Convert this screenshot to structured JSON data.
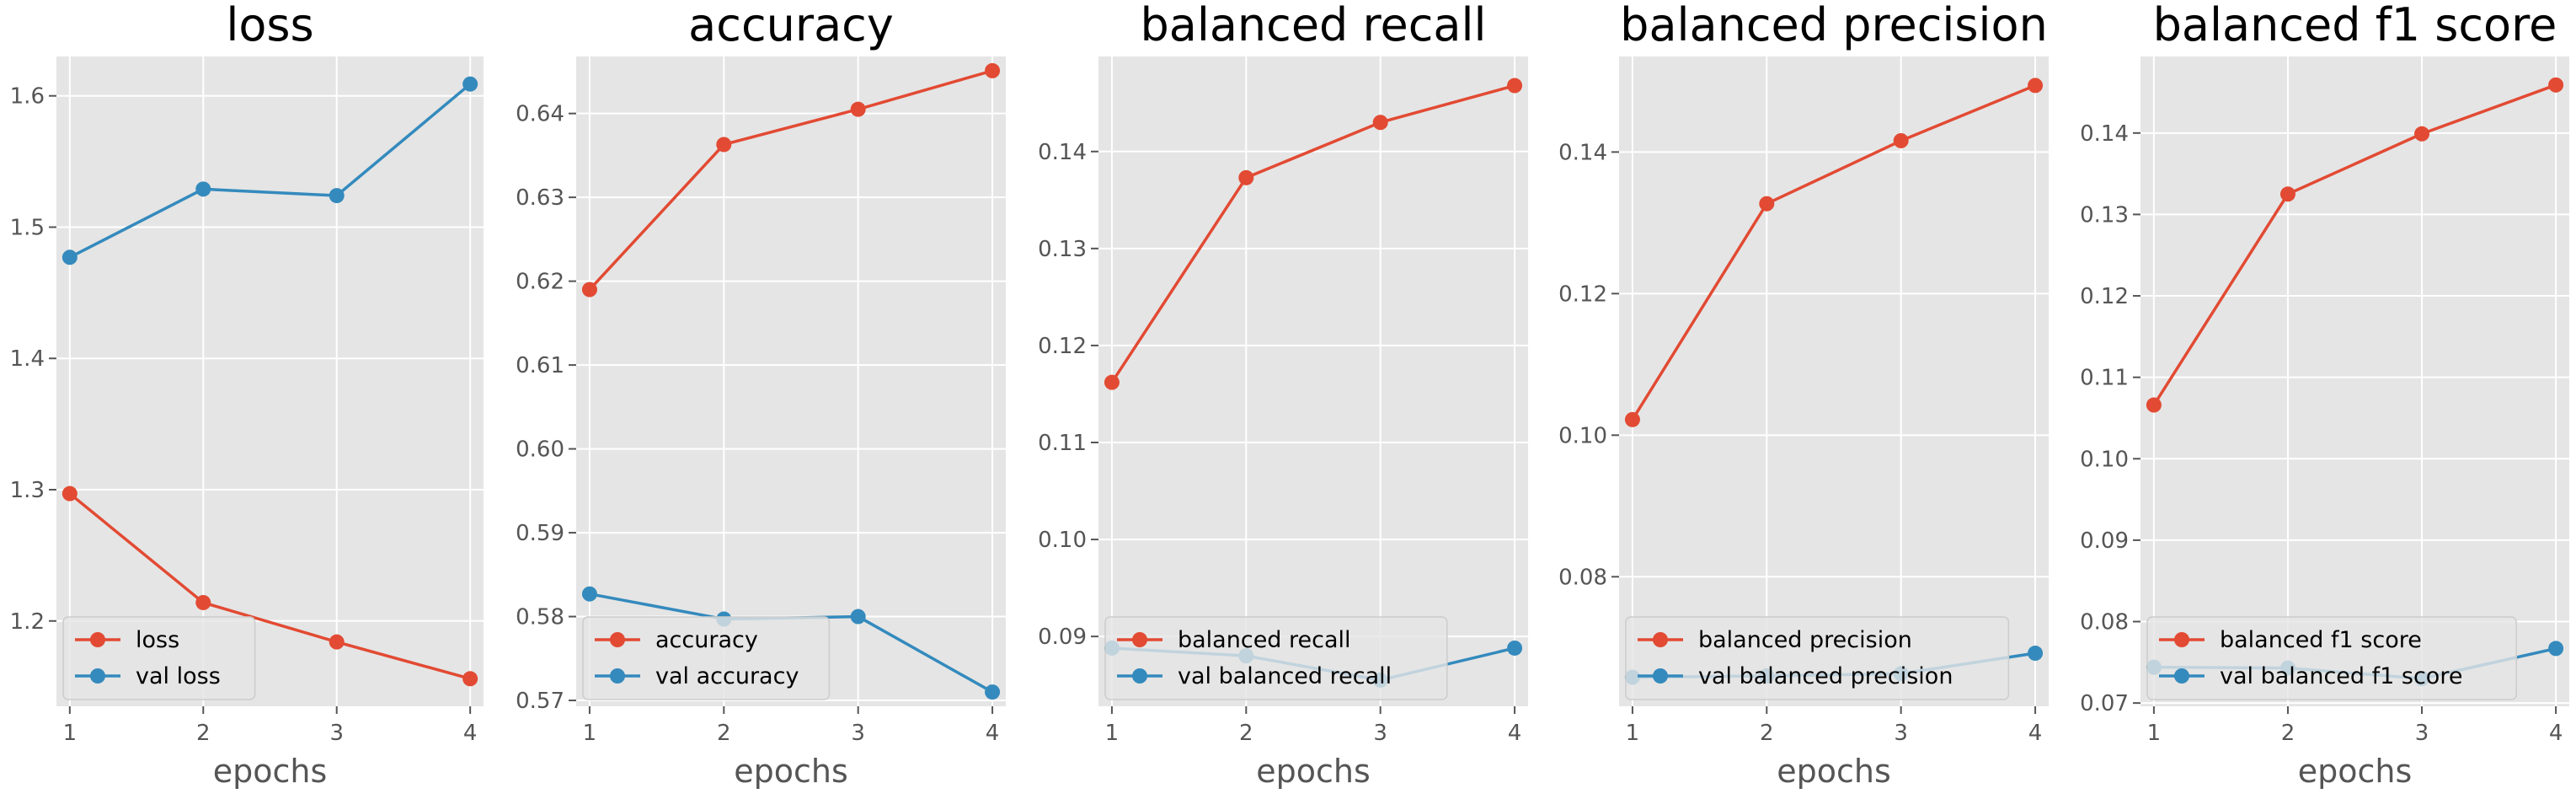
{
  "chart_data": [
    {
      "type": "line",
      "title": "loss",
      "xlabel": "epochs",
      "ylabel": "",
      "x": [
        1,
        2,
        3,
        4
      ],
      "xlim": [
        0.9,
        4.1
      ],
      "ylim": [
        1.135,
        1.63
      ],
      "yticks": [
        1.2,
        1.3,
        1.4,
        1.5,
        1.6
      ],
      "ytick_labels": [
        "1.2",
        "1.3",
        "1.4",
        "1.5",
        "1.6"
      ],
      "xtick_labels": [
        "1",
        "2",
        "3",
        "4"
      ],
      "grid": true,
      "legend": "lower left",
      "series": [
        {
          "name": "loss",
          "color": "#E24A33",
          "values": [
            1.297,
            1.214,
            1.184,
            1.156
          ]
        },
        {
          "name": "val loss",
          "color": "#348ABD",
          "values": [
            1.477,
            1.529,
            1.524,
            1.609
          ]
        }
      ]
    },
    {
      "type": "line",
      "title": "accuracy",
      "xlabel": "epochs",
      "ylabel": "",
      "x": [
        1,
        2,
        3,
        4
      ],
      "xlim": [
        0.9,
        4.1
      ],
      "ylim": [
        0.5693,
        0.6468
      ],
      "yticks": [
        0.57,
        0.58,
        0.59,
        0.6,
        0.61,
        0.62,
        0.63,
        0.64
      ],
      "ytick_labels": [
        "0.57",
        "0.58",
        "0.59",
        "0.60",
        "0.61",
        "0.62",
        "0.63",
        "0.64"
      ],
      "xtick_labels": [
        "1",
        "2",
        "3",
        "4"
      ],
      "grid": true,
      "legend": "lower left",
      "series": [
        {
          "name": "accuracy",
          "color": "#E24A33",
          "values": [
            0.619,
            0.6363,
            0.6405,
            0.6451
          ]
        },
        {
          "name": "val accuracy",
          "color": "#348ABD",
          "values": [
            0.5827,
            0.5797,
            0.58,
            0.571
          ]
        }
      ]
    },
    {
      "type": "line",
      "title": "balanced recall",
      "xlabel": "epochs",
      "ylabel": "",
      "x": [
        1,
        2,
        3,
        4
      ],
      "xlim": [
        0.9,
        4.1
      ],
      "ylim": [
        0.0828,
        0.1498
      ],
      "yticks": [
        0.09,
        0.1,
        0.11,
        0.12,
        0.13,
        0.14
      ],
      "ytick_labels": [
        "0.09",
        "0.10",
        "0.11",
        "0.12",
        "0.13",
        "0.14"
      ],
      "xtick_labels": [
        "1",
        "2",
        "3",
        "4"
      ],
      "grid": true,
      "legend": "lower left",
      "series": [
        {
          "name": "balanced recall",
          "color": "#E24A33",
          "values": [
            0.1162,
            0.1373,
            0.143,
            0.1468
          ]
        },
        {
          "name": "val balanced recall",
          "color": "#348ABD",
          "values": [
            0.0888,
            0.088,
            0.0855,
            0.0888
          ]
        }
      ]
    },
    {
      "type": "line",
      "title": "balanced precision",
      "xlabel": "epochs",
      "ylabel": "",
      "x": [
        1,
        2,
        3,
        4
      ],
      "xlim": [
        0.9,
        4.1
      ],
      "ylim": [
        0.0617,
        0.1535
      ],
      "yticks": [
        0.08,
        0.1,
        0.12,
        0.14
      ],
      "ytick_labels": [
        "0.08",
        "0.10",
        "0.12",
        "0.14"
      ],
      "xtick_labels": [
        "1",
        "2",
        "3",
        "4"
      ],
      "grid": true,
      "legend": "lower left",
      "series": [
        {
          "name": "balanced precision",
          "color": "#E24A33",
          "values": [
            0.1022,
            0.1327,
            0.1416,
            0.1494
          ]
        },
        {
          "name": "val balanced precision",
          "color": "#348ABD",
          "values": [
            0.0658,
            0.066,
            0.0663,
            0.0692
          ]
        }
      ]
    },
    {
      "type": "line",
      "title": "balanced f1 score",
      "xlabel": "epochs",
      "ylabel": "",
      "x": [
        1,
        2,
        3,
        4
      ],
      "xlim": [
        0.9,
        4.1
      ],
      "ylim": [
        0.0696,
        0.1494
      ],
      "yticks": [
        0.07,
        0.08,
        0.09,
        0.1,
        0.11,
        0.12,
        0.13,
        0.14
      ],
      "ytick_labels": [
        "0.07",
        "0.08",
        "0.09",
        "0.10",
        "0.11",
        "0.12",
        "0.13",
        "0.14"
      ],
      "xtick_labels": [
        "1",
        "2",
        "3",
        "4"
      ],
      "grid": true,
      "legend": "lower left",
      "series": [
        {
          "name": "balanced f1 score",
          "color": "#E24A33",
          "values": [
            0.1066,
            0.1325,
            0.1399,
            0.1459
          ]
        },
        {
          "name": "val balanced f1 score",
          "color": "#348ABD",
          "values": [
            0.0744,
            0.0743,
            0.073,
            0.0767
          ]
        }
      ]
    }
  ]
}
